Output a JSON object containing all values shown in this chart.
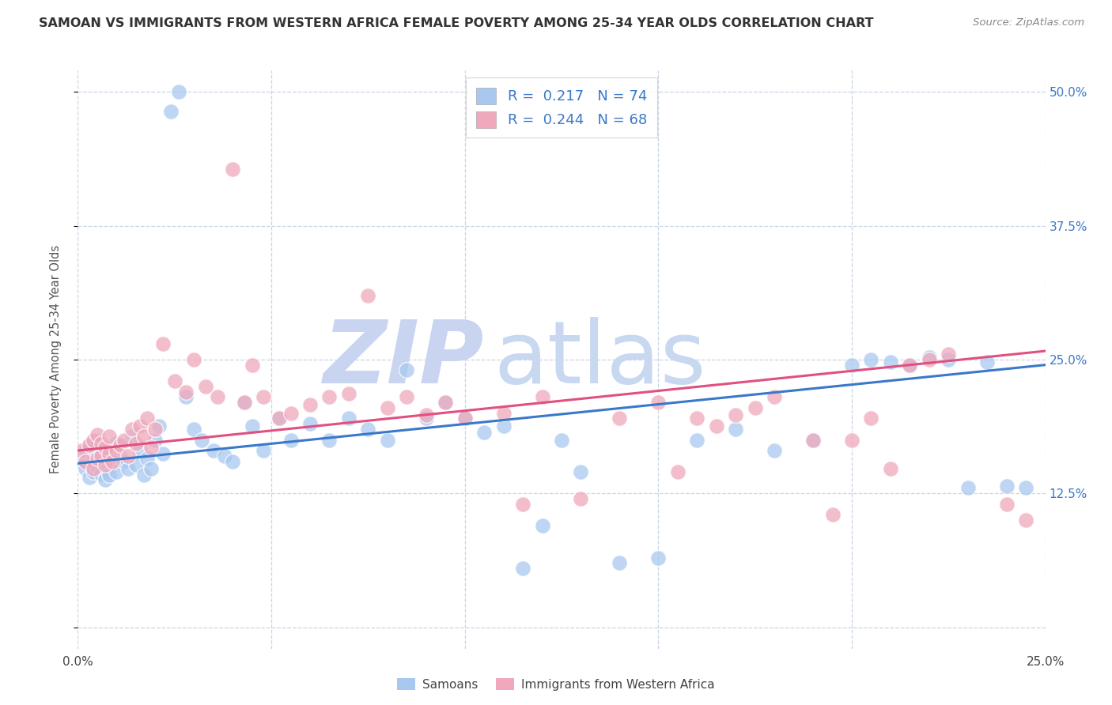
{
  "title": "SAMOAN VS IMMIGRANTS FROM WESTERN AFRICA FEMALE POVERTY AMONG 25-34 YEAR OLDS CORRELATION CHART",
  "source": "Source: ZipAtlas.com",
  "ylabel": "Female Poverty Among 25-34 Year Olds",
  "xlabel_samoans": "Samoans",
  "xlabel_immigrants": "Immigrants from Western Africa",
  "xlim": [
    0.0,
    0.25
  ],
  "ylim": [
    -0.02,
    0.52
  ],
  "ytick_positions": [
    0.0,
    0.125,
    0.25,
    0.375,
    0.5
  ],
  "ytick_labels_right": [
    "",
    "12.5%",
    "25.0%",
    "37.5%",
    "50.0%"
  ],
  "xtick_positions": [
    0.0,
    0.05,
    0.1,
    0.15,
    0.2,
    0.25
  ],
  "xtick_labels": [
    "0.0%",
    "",
    "",
    "",
    "",
    "25.0%"
  ],
  "R_samoans": "0.217",
  "N_samoans": "74",
  "R_immigrants": "0.244",
  "N_immigrants": "68",
  "color_samoans": "#a8c8f0",
  "color_immigrants": "#f0a8bc",
  "color_line_samoans": "#3a78c9",
  "color_line_immigrants": "#e05080",
  "legend_color": "#3a78c9",
  "background_color": "#ffffff",
  "grid_color": "#c8d4e8",
  "watermark_zip_color": "#c8d4f0",
  "watermark_atlas_color": "#c8d8f0",
  "samoans_x": [
    0.001,
    0.002,
    0.002,
    0.003,
    0.003,
    0.004,
    0.004,
    0.005,
    0.005,
    0.006,
    0.006,
    0.007,
    0.007,
    0.008,
    0.008,
    0.009,
    0.01,
    0.01,
    0.011,
    0.012,
    0.013,
    0.014,
    0.015,
    0.016,
    0.017,
    0.018,
    0.019,
    0.02,
    0.021,
    0.022,
    0.024,
    0.026,
    0.028,
    0.03,
    0.032,
    0.035,
    0.038,
    0.04,
    0.043,
    0.045,
    0.048,
    0.052,
    0.055,
    0.06,
    0.065,
    0.07,
    0.075,
    0.08,
    0.085,
    0.09,
    0.095,
    0.1,
    0.105,
    0.11,
    0.115,
    0.12,
    0.125,
    0.13,
    0.14,
    0.15,
    0.16,
    0.17,
    0.18,
    0.19,
    0.2,
    0.205,
    0.21,
    0.215,
    0.22,
    0.225,
    0.23,
    0.235,
    0.24,
    0.245
  ],
  "samoans_y": [
    0.155,
    0.148,
    0.165,
    0.14,
    0.17,
    0.145,
    0.16,
    0.15,
    0.175,
    0.143,
    0.162,
    0.138,
    0.155,
    0.168,
    0.142,
    0.158,
    0.145,
    0.172,
    0.16,
    0.155,
    0.148,
    0.178,
    0.152,
    0.165,
    0.142,
    0.158,
    0.148,
    0.175,
    0.188,
    0.162,
    0.482,
    0.5,
    0.215,
    0.185,
    0.175,
    0.165,
    0.16,
    0.155,
    0.21,
    0.188,
    0.165,
    0.195,
    0.175,
    0.19,
    0.175,
    0.195,
    0.185,
    0.175,
    0.24,
    0.195,
    0.21,
    0.195,
    0.182,
    0.188,
    0.055,
    0.095,
    0.175,
    0.145,
    0.06,
    0.065,
    0.175,
    0.185,
    0.165,
    0.175,
    0.245,
    0.25,
    0.248,
    0.245,
    0.252,
    0.25,
    0.13,
    0.248,
    0.132,
    0.13
  ],
  "immigrants_x": [
    0.001,
    0.002,
    0.003,
    0.004,
    0.004,
    0.005,
    0.005,
    0.006,
    0.006,
    0.007,
    0.007,
    0.008,
    0.008,
    0.009,
    0.01,
    0.011,
    0.012,
    0.013,
    0.014,
    0.015,
    0.016,
    0.017,
    0.018,
    0.019,
    0.02,
    0.022,
    0.025,
    0.028,
    0.03,
    0.033,
    0.036,
    0.04,
    0.043,
    0.045,
    0.048,
    0.052,
    0.055,
    0.06,
    0.065,
    0.07,
    0.075,
    0.08,
    0.085,
    0.09,
    0.095,
    0.1,
    0.11,
    0.115,
    0.12,
    0.13,
    0.14,
    0.15,
    0.155,
    0.16,
    0.165,
    0.17,
    0.175,
    0.18,
    0.19,
    0.195,
    0.2,
    0.205,
    0.21,
    0.215,
    0.22,
    0.225,
    0.24,
    0.245
  ],
  "immigrants_y": [
    0.165,
    0.155,
    0.17,
    0.148,
    0.175,
    0.158,
    0.18,
    0.16,
    0.172,
    0.152,
    0.168,
    0.162,
    0.178,
    0.155,
    0.165,
    0.17,
    0.175,
    0.16,
    0.185,
    0.172,
    0.188,
    0.178,
    0.195,
    0.168,
    0.185,
    0.265,
    0.23,
    0.22,
    0.25,
    0.225,
    0.215,
    0.428,
    0.21,
    0.245,
    0.215,
    0.195,
    0.2,
    0.208,
    0.215,
    0.218,
    0.31,
    0.205,
    0.215,
    0.198,
    0.21,
    0.195,
    0.2,
    0.115,
    0.215,
    0.12,
    0.195,
    0.21,
    0.145,
    0.195,
    0.188,
    0.198,
    0.205,
    0.215,
    0.175,
    0.105,
    0.175,
    0.195,
    0.148,
    0.245,
    0.25,
    0.255,
    0.115,
    0.1
  ],
  "line_blue_x0": 0.0,
  "line_blue_y0": 0.153,
  "line_blue_x1": 0.25,
  "line_blue_y1": 0.245,
  "line_pink_x0": 0.0,
  "line_pink_y0": 0.165,
  "line_pink_x1": 0.25,
  "line_pink_y1": 0.258
}
